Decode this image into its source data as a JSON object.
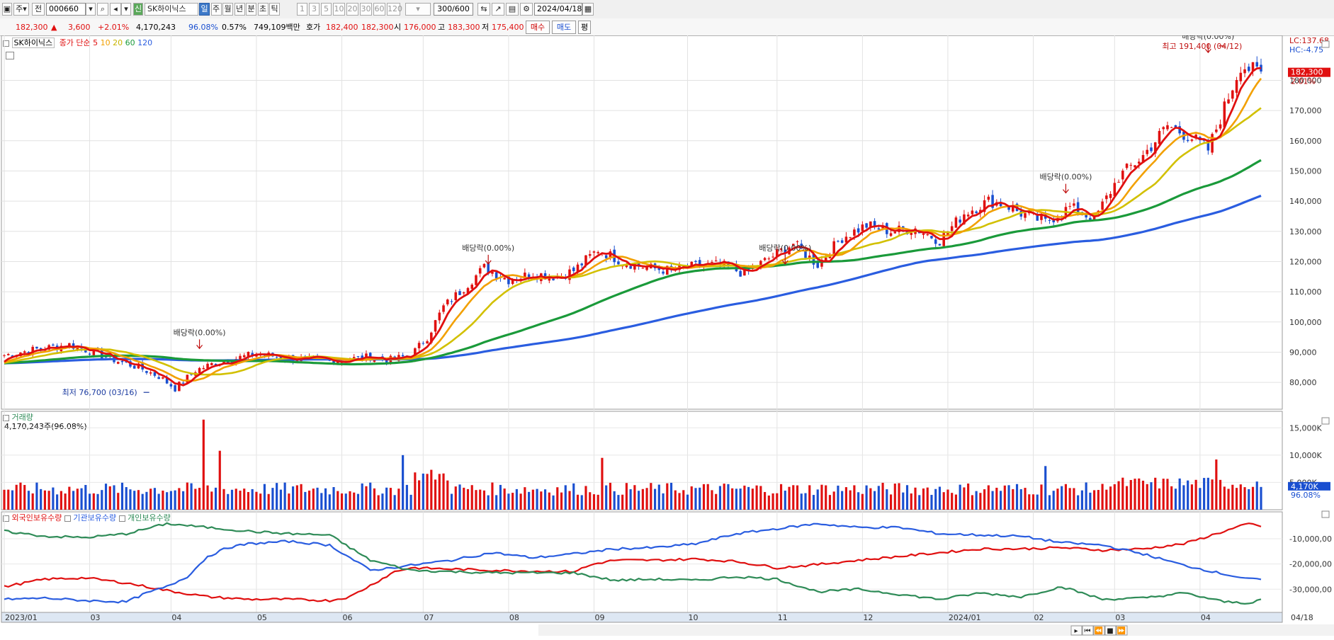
{
  "toolbar": {
    "type_select": "주",
    "code_label": "전",
    "code_value": "000660",
    "stock_name": "SK하이닉스",
    "period_buttons": [
      "일",
      "주",
      "월",
      "년",
      "분",
      "초",
      "틱"
    ],
    "selected_period": "일",
    "tick_buttons": [
      "1",
      "3",
      "5",
      "10",
      "20",
      "30",
      "60",
      "120"
    ],
    "count_display": "300",
    "count_total": "/600",
    "date_value": "2024/04/18"
  },
  "info": {
    "price": "182,300",
    "change_arrow": "▲",
    "change": "3,600",
    "change_pct": "+2.01%",
    "volume": "4,170,243",
    "volume_ratio": "96.08%",
    "turnover": "0.57%",
    "amount": "749,109백만",
    "bid_label": "호가",
    "bid1": "182,400",
    "bid2": "182,300",
    "open_label": "시",
    "open": "176,000",
    "high_label": "고",
    "high": "183,300",
    "low_label": "저",
    "low": "175,400",
    "buy_label": "매수",
    "sell_label": "매도",
    "eval_label": "평"
  },
  "colors": {
    "up": "#e01010",
    "down": "#1a4fd0",
    "ma5": "#e01010",
    "ma10": "#f2a000",
    "ma20": "#d2c000",
    "ma60": "#1a9a3a",
    "ma120": "#2a5de0",
    "foreign": "#e01010",
    "institution": "#2a5de0",
    "individual": "#2e8b57"
  },
  "chart_data": [
    {
      "type": "line",
      "title": "SK하이닉스",
      "legend_prefix": "종가 단순",
      "ma_periods": [
        "5",
        "10",
        "20",
        "60",
        "120"
      ],
      "x_tick_labels": [
        "2023/01",
        "03",
        "04",
        "05",
        "06",
        "07",
        "08",
        "09",
        "10",
        "11",
        "12",
        "2024/01",
        "02",
        "03",
        "04",
        "04/18"
      ],
      "ylim": [
        73000,
        193000
      ],
      "y_tick_labels": [
        "80,000",
        "90,000",
        "100,000",
        "110,000",
        "120,000",
        "130,000",
        "140,000",
        "150,000",
        "160,000",
        "170,000",
        "180,000"
      ],
      "y_ticks": [
        80000,
        90000,
        100000,
        110000,
        120000,
        130000,
        140000,
        150000,
        160000,
        170000,
        180000
      ],
      "close_anchor_days": [
        0,
        8,
        16,
        22,
        28,
        33,
        38,
        42,
        47,
        52,
        57,
        62,
        70,
        80,
        90,
        95,
        100,
        104,
        108,
        112,
        118,
        124,
        130,
        136,
        140,
        146,
        152,
        158,
        164,
        170,
        176,
        182,
        188,
        194,
        200,
        206,
        212,
        218,
        224,
        230,
        236,
        242,
        246,
        250,
        256,
        262,
        268,
        274,
        280,
        286,
        292,
        296,
        300,
        304,
        309
      ],
      "close_anchor_values": [
        89000,
        91000,
        92500,
        90000,
        87000,
        85000,
        82000,
        78000,
        84000,
        86500,
        88000,
        89500,
        88000,
        87000,
        88500,
        87500,
        89000,
        95000,
        105000,
        110000,
        118000,
        114000,
        116000,
        115000,
        117000,
        124000,
        120000,
        118000,
        117000,
        118500,
        119000,
        116000,
        121000,
        126000,
        119000,
        128000,
        132000,
        130000,
        131000,
        127000,
        136000,
        140000,
        139000,
        136000,
        133000,
        138000,
        134000,
        148000,
        155000,
        165000,
        161000,
        157000,
        171000,
        185000,
        182300
      ],
      "ma_values_at_end": {
        "ma5": 183500,
        "ma10": 184500,
        "ma20": 178500,
        "ma60": 160500,
        "ma120": 146500
      },
      "annotations": [
        {
          "text": "최저 76,700 (03/16)",
          "kind": "low"
        },
        {
          "text": "최고 191,400 (04/12)",
          "kind": "high"
        },
        {
          "text": "배당락(0.00%)",
          "kind": "dividend"
        },
        {
          "text": "배당락(0.00%)",
          "kind": "dividend"
        },
        {
          "text": "배당락(0.00%)",
          "kind": "dividend"
        },
        {
          "text": "배당락(0.00%)",
          "kind": "dividend"
        },
        {
          "text": "배당락(0.00%)",
          "kind": "dividend"
        }
      ],
      "right_labels": {
        "lc": "LC:137.68",
        "hc": "HC:-4.75",
        "last": "182,300",
        "last_pct": "2.01%"
      }
    },
    {
      "type": "bar",
      "title": "거래량",
      "subtitle": "4,170,243주(96.08%)",
      "y_tick_labels": [
        "5,000K",
        "10,000K",
        "15,000K"
      ],
      "y_ticks": [
        5000,
        10000,
        15000
      ],
      "ylim": [
        0,
        17500
      ],
      "spikes": [
        {
          "day": 49,
          "value": 16500
        },
        {
          "day": 53,
          "value": 10800
        },
        {
          "day": 98,
          "value": 10000
        },
        {
          "day": 147,
          "value": 9500
        },
        {
          "day": 256,
          "value": 8000
        },
        {
          "day": 298,
          "value": 9200
        }
      ],
      "last_value_label": "4,170K",
      "last_value_pct": "96.08%",
      "last_value": 4170
    },
    {
      "type": "line",
      "title": "보유수량",
      "series": [
        {
          "name": "외국인보유수량",
          "key": "foreign",
          "anchor_days": [
            0,
            10,
            20,
            30,
            40,
            50,
            60,
            70,
            80,
            85,
            90,
            96,
            100,
            110,
            120,
            130,
            140,
            145,
            150,
            160,
            170,
            180,
            190,
            198,
            210,
            220,
            230,
            240,
            250,
            260,
            270,
            280,
            290,
            300,
            306,
            309
          ],
          "anchor_values": [
            -29000,
            -26000,
            -25500,
            -27500,
            -30500,
            -33000,
            -34000,
            -34000,
            -34500,
            -33000,
            -28500,
            -23000,
            -21500,
            -22000,
            -22500,
            -22800,
            -23000,
            -20000,
            -18500,
            -18500,
            -18000,
            -19000,
            -21500,
            -20500,
            -18500,
            -17000,
            -15500,
            -14000,
            -14000,
            -13500,
            -14500,
            -14000,
            -12000,
            -7000,
            -4000,
            -5000
          ]
        },
        {
          "name": "기관보유수량",
          "key": "institution",
          "anchor_days": [
            0,
            10,
            20,
            30,
            35,
            40,
            45,
            50,
            55,
            60,
            70,
            80,
            90,
            100,
            110,
            120,
            130,
            140,
            150,
            160,
            170,
            180,
            190,
            200,
            210,
            220,
            230,
            240,
            250,
            260,
            270,
            280,
            290,
            300,
            306,
            309
          ],
          "anchor_values": [
            -34000,
            -33500,
            -34500,
            -35000,
            -31500,
            -29000,
            -25000,
            -17000,
            -13500,
            -12000,
            -11000,
            -12500,
            -22500,
            -20500,
            -18500,
            -15500,
            -17500,
            -16000,
            -14000,
            -13500,
            -12000,
            -8000,
            -6000,
            -4000,
            -5500,
            -5500,
            -8000,
            -8500,
            -9000,
            -11500,
            -12500,
            -16000,
            -20500,
            -24000,
            -26000,
            -26000
          ]
        },
        {
          "name": "개인보유수량",
          "key": "individual",
          "anchor_days": [
            0,
            10,
            20,
            30,
            40,
            50,
            60,
            70,
            80,
            90,
            100,
            110,
            120,
            130,
            140,
            150,
            160,
            170,
            180,
            190,
            200,
            210,
            220,
            230,
            240,
            250,
            260,
            270,
            280,
            290,
            300,
            306,
            309
          ],
          "anchor_values": [
            -7000,
            -9000,
            -9500,
            -8000,
            -4000,
            -5500,
            -7000,
            -8000,
            -8500,
            -18500,
            -22500,
            -23000,
            -23500,
            -23500,
            -23500,
            -26500,
            -26000,
            -26500,
            -25000,
            -26000,
            -31000,
            -30000,
            -32000,
            -34000,
            -31500,
            -33000,
            -29000,
            -34000,
            -33500,
            -31500,
            -35000,
            -35500,
            -34000
          ]
        }
      ],
      "y_tick_labels": [
        "-10,000,00",
        "-20,000,00",
        "-30,000,00"
      ],
      "y_ticks": [
        -10000,
        -20000,
        -30000
      ],
      "ylim": [
        -37500,
        -1000
      ]
    }
  ]
}
